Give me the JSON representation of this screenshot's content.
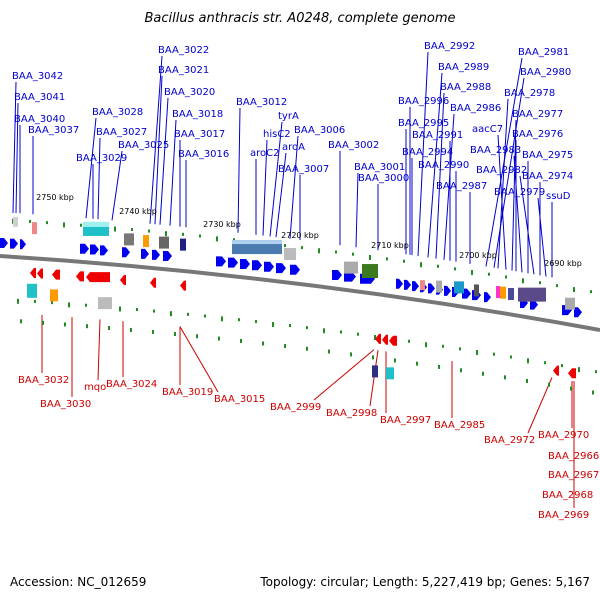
{
  "title": "Bacillus anthracis str. A0248, complete genome",
  "footer": {
    "accession": "Accession: NC_012659",
    "summary": "Topology: circular; Length: 5,227,419 bp; Genes: 5,167"
  },
  "colors": {
    "top_label": "#0000cc",
    "bottom_label": "#cc0000",
    "backbone": "#777777",
    "tick": "#228b22"
  },
  "kbp_ticks": [
    "2750 kbp",
    "2740 kbp",
    "2730 kbp",
    "2720 kbp",
    "2710 kbp",
    "2700 kbp",
    "2690 kbp"
  ],
  "top_labels": [
    "BAA_3042",
    "BAA_3041",
    "BAA_3040",
    "BAA_3037",
    "BAA_3028",
    "BAA_3027",
    "BAA_3029",
    "BAA_3025",
    "BAA_3022",
    "BAA_3021",
    "BAA_3020",
    "BAA_3018",
    "BAA_3017",
    "BAA_3016",
    "BAA_3012",
    "tyrA",
    "hisC2",
    "aroA",
    "aroC2",
    "BAA_3006",
    "BAA_3007",
    "BAA_3002",
    "BAA_3001",
    "BAA_3000",
    "BAA_2992",
    "BAA_2989",
    "BAA_2988",
    "BAA_2996",
    "BAA_2986",
    "BAA_2995",
    "BAA_2991",
    "BAA_2994",
    "BAA_2990",
    "BAA_2987",
    "BAA_2981",
    "BAA_2980",
    "BAA_2978",
    "aacC7",
    "BAA_2977",
    "BAA_2976",
    "BAA_2983",
    "BAA_2975",
    "BAA_2982",
    "BAA_2974",
    "BAA_2979",
    "ssuD"
  ],
  "bottom_labels": [
    "BAA_3032",
    "BAA_3030",
    "mqo",
    "BAA_3024",
    "BAA_3019",
    "BAA_3015",
    "BAA_2999",
    "BAA_2998",
    "BAA_2997",
    "BAA_2985",
    "BAA_2972",
    "BAA_2970",
    "BAA_2966",
    "BAA_2967",
    "BAA_2968",
    "BAA_2969"
  ]
}
